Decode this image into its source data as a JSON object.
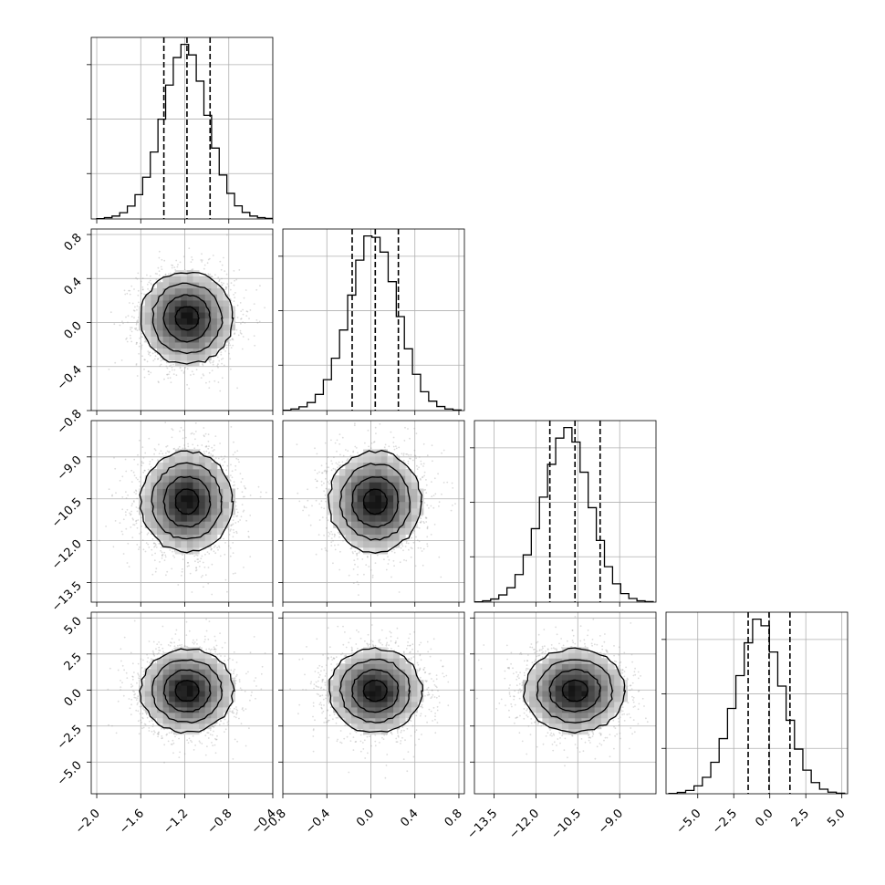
{
  "chart_data": {
    "type": "corner",
    "grid": true,
    "colors": {
      "line": "#000000",
      "scatter": "#9a9a9a",
      "gridline": "#b0b0b0",
      "density_dark": "#000000",
      "density_light": "#f2f2f2"
    },
    "parameters": [
      {
        "range": [
          -2.05,
          -0.4
        ],
        "ticks": [
          -2.0,
          -1.6,
          -1.2,
          -0.8,
          -0.4
        ],
        "tick_labels": [
          "−2.0",
          "−1.6",
          "−1.2",
          "−0.8",
          "−0.4"
        ],
        "mean": -1.18,
        "std": 0.21,
        "quantiles": [
          -1.39,
          -1.18,
          -0.97
        ],
        "hist_edges": [
          -2.0,
          -0.4
        ],
        "hist_counts": [
          2,
          10,
          22,
          48,
          98,
          185,
          318,
          510,
          760,
          1020,
          1230,
          1330,
          1250,
          1050,
          790,
          540,
          335,
          195,
          100,
          50,
          22,
          10,
          4
        ]
      },
      {
        "range": [
          -0.8,
          0.85
        ],
        "ticks": [
          -0.8,
          -0.4,
          0.0,
          0.4,
          0.8
        ],
        "tick_labels": [
          "−0.8",
          "−0.4",
          "0.0",
          "0.4",
          "0.8"
        ],
        "mean": 0.04,
        "std": 0.21,
        "quantiles": [
          -0.17,
          0.04,
          0.25
        ],
        "hist_edges": [
          -0.8,
          0.82
        ],
        "hist_counts": [
          2,
          12,
          28,
          60,
          120,
          230,
          390,
          600,
          860,
          1120,
          1300,
          1290,
          1180,
          960,
          700,
          460,
          270,
          140,
          70,
          30,
          12,
          4
        ]
      },
      {
        "range": [
          -14.2,
          -7.7
        ],
        "ticks": [
          -13.5,
          -12.0,
          -10.5,
          -9.0
        ],
        "tick_labels": [
          "−13.5",
          "−12.0",
          "−10.5",
          "−9.0"
        ],
        "mean": -10.6,
        "std": 0.9,
        "quantiles": [
          -11.5,
          -10.6,
          -9.7
        ],
        "hist_edges": [
          -14.2,
          -7.8
        ],
        "hist_counts": [
          2,
          10,
          24,
          55,
          110,
          210,
          360,
          560,
          800,
          1050,
          1250,
          1330,
          1220,
          990,
          720,
          470,
          270,
          140,
          65,
          28,
          10,
          4
        ]
      },
      {
        "range": [
          -7.2,
          5.4
        ],
        "ticks": [
          -5.0,
          -2.5,
          0.0,
          2.5,
          5.0
        ],
        "tick_labels": [
          "−5.0",
          "−2.5",
          "0.0",
          "2.5",
          "5.0"
        ],
        "mean": -0.05,
        "std": 1.45,
        "quantiles": [
          -1.5,
          -0.05,
          1.4
        ],
        "hist_edges": [
          -7.0,
          5.2
        ],
        "hist_counts": [
          2,
          10,
          25,
          60,
          125,
          240,
          420,
          650,
          900,
          1150,
          1330,
          1280,
          1080,
          820,
          560,
          340,
          180,
          85,
          35,
          12,
          4
        ]
      }
    ],
    "contour_levels_sigma": [
      0.5,
      1.0,
      1.5,
      2.0
    ],
    "scatter_points_per_panel": 2200
  }
}
